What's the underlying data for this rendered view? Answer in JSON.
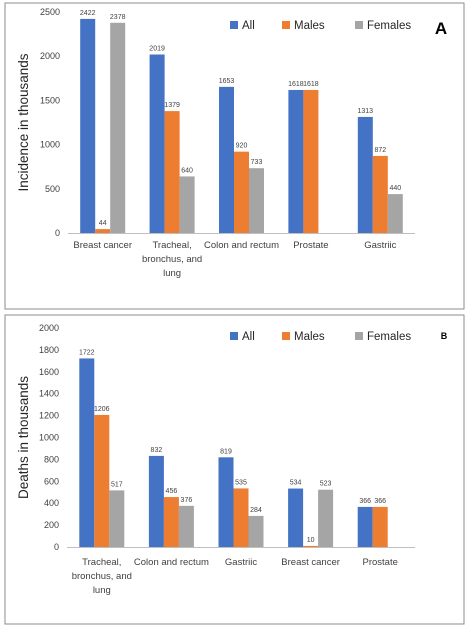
{
  "chart_data": [
    {
      "panel_label": "A",
      "type": "bar",
      "ylabel": "Incidence in thousands",
      "ylim": [
        0,
        2500
      ],
      "yticks": [
        0,
        500,
        1000,
        1500,
        2000,
        2500
      ],
      "legend_position": "top-right",
      "categories": [
        [
          "Breast cancer"
        ],
        [
          "Tracheal,",
          "bronchus, and",
          "lung"
        ],
        [
          "Colon and rectum"
        ],
        [
          "Prostate"
        ],
        [
          "Gastriic"
        ]
      ],
      "series": [
        {
          "name": "All",
          "color": "#4472C4",
          "values": [
            2422,
            2019,
            1653,
            1618,
            1313
          ]
        },
        {
          "name": "Males",
          "color": "#ED7D31",
          "values": [
            44,
            1379,
            920,
            1618,
            872
          ]
        },
        {
          "name": "Females",
          "color": "#A5A5A5",
          "values": [
            2378,
            640,
            733,
            null,
            440
          ]
        }
      ]
    },
    {
      "panel_label": "B",
      "type": "bar",
      "ylabel": "Deaths in thousands",
      "ylim": [
        0,
        2000
      ],
      "yticks": [
        0,
        200,
        400,
        600,
        800,
        1000,
        1200,
        1400,
        1600,
        1800,
        2000
      ],
      "legend_position": "top-right",
      "categories": [
        [
          "Tracheal,",
          "bronchus, and",
          "lung"
        ],
        [
          "Colon and rectum"
        ],
        [
          "Gastriic"
        ],
        [
          "Breast cancer"
        ],
        [
          "Prostate"
        ]
      ],
      "series": [
        {
          "name": "All",
          "color": "#4472C4",
          "values": [
            1722,
            832,
            819,
            534,
            366
          ]
        },
        {
          "name": "Males",
          "color": "#ED7D31",
          "values": [
            1206,
            456,
            535,
            10,
            366
          ]
        },
        {
          "name": "Females",
          "color": "#A5A5A5",
          "values": [
            517,
            376,
            284,
            523,
            null
          ]
        }
      ]
    }
  ]
}
